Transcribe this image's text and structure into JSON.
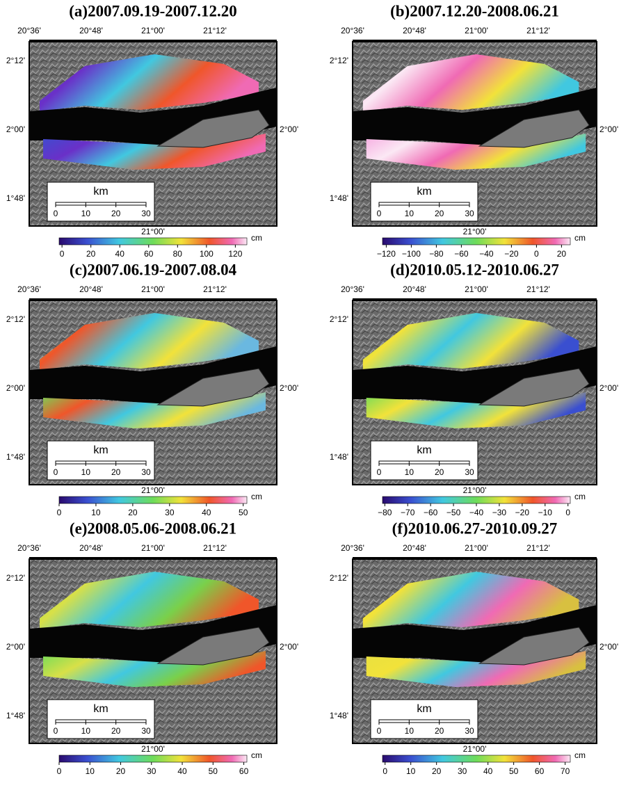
{
  "panels": [
    {
      "title": "(a)2007.09.19-2007.12.20",
      "lon_top": [
        "20°36'",
        "20°48'",
        "21°00'",
        "21°12'"
      ],
      "lat_left": [
        "2°12'",
        "2°00'",
        "1°48'"
      ],
      "lat_right": [
        "2°00'"
      ],
      "lon_bottom": "21°00'",
      "scale": {
        "unit": "km",
        "ticks": [
          0,
          10,
          20,
          30
        ]
      },
      "colorbar": {
        "unit": "cm",
        "lim": [
          -2,
          128
        ],
        "ticks": [
          0,
          20,
          40,
          60,
          80,
          100,
          120
        ]
      }
    },
    {
      "title": "(b)2007.12.20-2008.06.21",
      "lon_top": [
        "20°36'",
        "20°48'",
        "21°00'",
        "21°12'"
      ],
      "lat_left": [
        "2°12'",
        null,
        "1°48'"
      ],
      "lat_right": [
        "2°00'"
      ],
      "lon_bottom": "21°00'",
      "scale": {
        "unit": "km",
        "ticks": [
          0,
          10,
          20,
          30
        ]
      },
      "colorbar": {
        "unit": "cm",
        "lim": [
          -123,
          27
        ],
        "ticks": [
          {
            "value": -120,
            "label": "−120"
          },
          {
            "value": -100,
            "label": "−100"
          },
          {
            "value": -80,
            "label": "−80"
          },
          {
            "value": -60,
            "label": "−60"
          },
          {
            "value": -40,
            "label": "−40"
          },
          {
            "value": -20,
            "label": "−20"
          },
          0,
          20
        ]
      }
    },
    {
      "title": "(c)2007.06.19-2007.08.04",
      "lon_top": [
        "20°36'",
        "20°48'",
        "21°00'",
        "21°12'"
      ],
      "lat_left": [
        "2°12'",
        "2°00'",
        "1°48'"
      ],
      "lat_right": [
        "2°00'"
      ],
      "lon_bottom": "21°00'",
      "scale": {
        "unit": "km",
        "ticks": [
          0,
          10,
          20,
          30
        ]
      },
      "colorbar": {
        "unit": "cm",
        "lim": [
          0,
          51
        ],
        "ticks": [
          0,
          10,
          20,
          30,
          40,
          50
        ]
      }
    },
    {
      "title": "(d)2010.05.12-2010.06.27",
      "lon_top": [
        "20°36'",
        "20°48'",
        "21°00'",
        "21°12'"
      ],
      "lat_left": [
        "2°12'",
        null,
        "1°48'"
      ],
      "lat_right": [
        "2°00'"
      ],
      "lon_bottom": "21°00'",
      "scale": {
        "unit": "km",
        "ticks": [
          0,
          10,
          20,
          30
        ]
      },
      "colorbar": {
        "unit": "cm",
        "lim": [
          -81,
          1
        ],
        "ticks": [
          {
            "value": -80,
            "label": "−80"
          },
          {
            "value": -70,
            "label": "−70"
          },
          {
            "value": -60,
            "label": "−60"
          },
          {
            "value": -50,
            "label": "−50"
          },
          {
            "value": -40,
            "label": "−40"
          },
          {
            "value": -30,
            "label": "−30"
          },
          {
            "value": -20,
            "label": "−20"
          },
          {
            "value": -10,
            "label": "−10"
          },
          0
        ]
      }
    },
    {
      "title": "(e)2008.05.06-2008.06.21",
      "lon_top": [
        "20°36'",
        "20°48'",
        "21°00'",
        "21°12'"
      ],
      "lat_left": [
        "2°12'",
        "2°00'",
        "1°48'"
      ],
      "lat_right": [
        "2°00'"
      ],
      "lon_bottom": "21°00'",
      "scale": {
        "unit": "km",
        "ticks": [
          0,
          10,
          20,
          30
        ]
      },
      "colorbar": {
        "unit": "cm",
        "lim": [
          0,
          61
        ],
        "ticks": [
          0,
          10,
          20,
          30,
          40,
          50,
          60
        ]
      }
    },
    {
      "title": "(f)2010.06.27-2010.09.27",
      "lon_top": [
        "20°36'",
        "20°48'",
        "21°00'",
        "21°12'"
      ],
      "lat_left": [
        "2°12'",
        null,
        "1°48'"
      ],
      "lat_right": [
        "2°00'"
      ],
      "lon_bottom": "21°00'",
      "scale": {
        "unit": "km",
        "ticks": [
          0,
          10,
          20,
          30
        ]
      },
      "colorbar": {
        "unit": "cm",
        "lim": [
          -1,
          72
        ],
        "ticks": [
          0,
          10,
          20,
          30,
          40,
          50,
          60,
          70
        ]
      }
    }
  ]
}
